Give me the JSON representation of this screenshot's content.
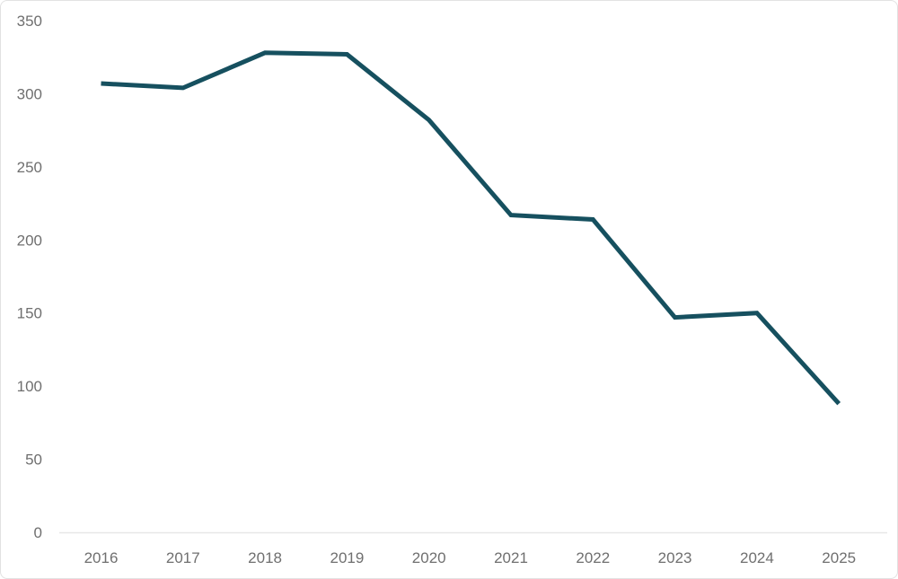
{
  "chart_data": {
    "type": "line",
    "title": "",
    "xlabel": "",
    "ylabel": "",
    "categories": [
      "2016",
      "2017",
      "2018",
      "2019",
      "2020",
      "2021",
      "2022",
      "2023",
      "2024",
      "2025"
    ],
    "series": [
      {
        "name": "value",
        "values": [
          307,
          304,
          328,
          327,
          282,
          217,
          214,
          147,
          150,
          88
        ]
      }
    ],
    "ylim": [
      0,
      350
    ],
    "y_ticks": [
      0,
      50,
      100,
      150,
      200,
      250,
      300,
      350
    ],
    "grid": false,
    "legend": false,
    "colors": {
      "line": "#16505f",
      "axis_line": "#e7e7e7",
      "tick_label": "#6f6f6f",
      "background": "#ffffff",
      "frame_border": "#e2e2e2"
    }
  }
}
